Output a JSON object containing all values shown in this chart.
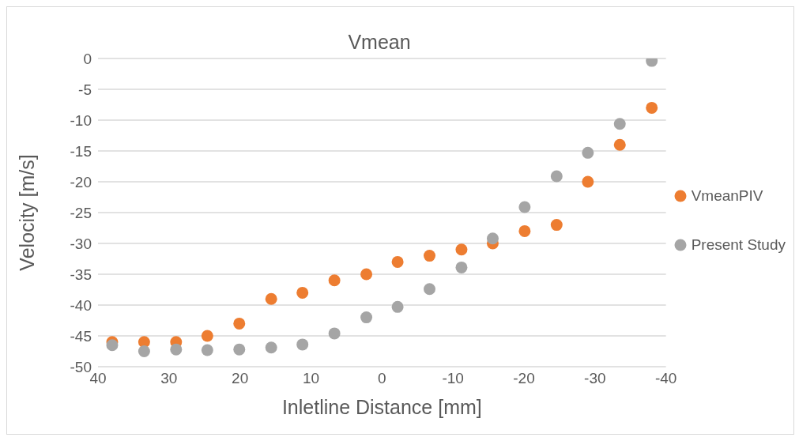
{
  "chart_data": {
    "type": "scatter",
    "title": "Vmean",
    "xlabel": "Inletline Distance [mm]",
    "ylabel": "Velocity [m/s]",
    "x": [
      38,
      33.5,
      29,
      24.6,
      20.1,
      15.6,
      11.2,
      6.7,
      2.2,
      -2.2,
      -6.7,
      -11.2,
      -15.6,
      -20.1,
      -24.6,
      -29,
      -33.5,
      -38
    ],
    "series": [
      {
        "name": "VmeanPIV",
        "color": "#ed7d31",
        "values": [
          -46,
          -46,
          -46,
          -45,
          -43,
          -39,
          -38,
          -36,
          -35,
          -33,
          -32,
          -31,
          -30,
          -28,
          -27,
          -20,
          -14,
          -8
        ]
      },
      {
        "name": "Present Study",
        "color": "#a5a5a5",
        "values": [
          -46.5,
          -47.5,
          -47.2,
          -47.3,
          -47.2,
          -46.9,
          -46.4,
          -44.6,
          -42,
          -40.3,
          -37.4,
          -33.9,
          -29.2,
          -24.1,
          -19.1,
          -15.3,
          -10.6,
          -0.4
        ]
      }
    ],
    "xlim": [
      40,
      -40
    ],
    "xticks": [
      40,
      30,
      20,
      10,
      0,
      -10,
      -20,
      -30,
      -40
    ],
    "ylim": [
      -50,
      0
    ],
    "yticks": [
      0,
      -5,
      -10,
      -15,
      -20,
      -25,
      -30,
      -35,
      -40,
      -45,
      -50
    ],
    "grid": "y",
    "legend": "right",
    "marker": "circle"
  }
}
